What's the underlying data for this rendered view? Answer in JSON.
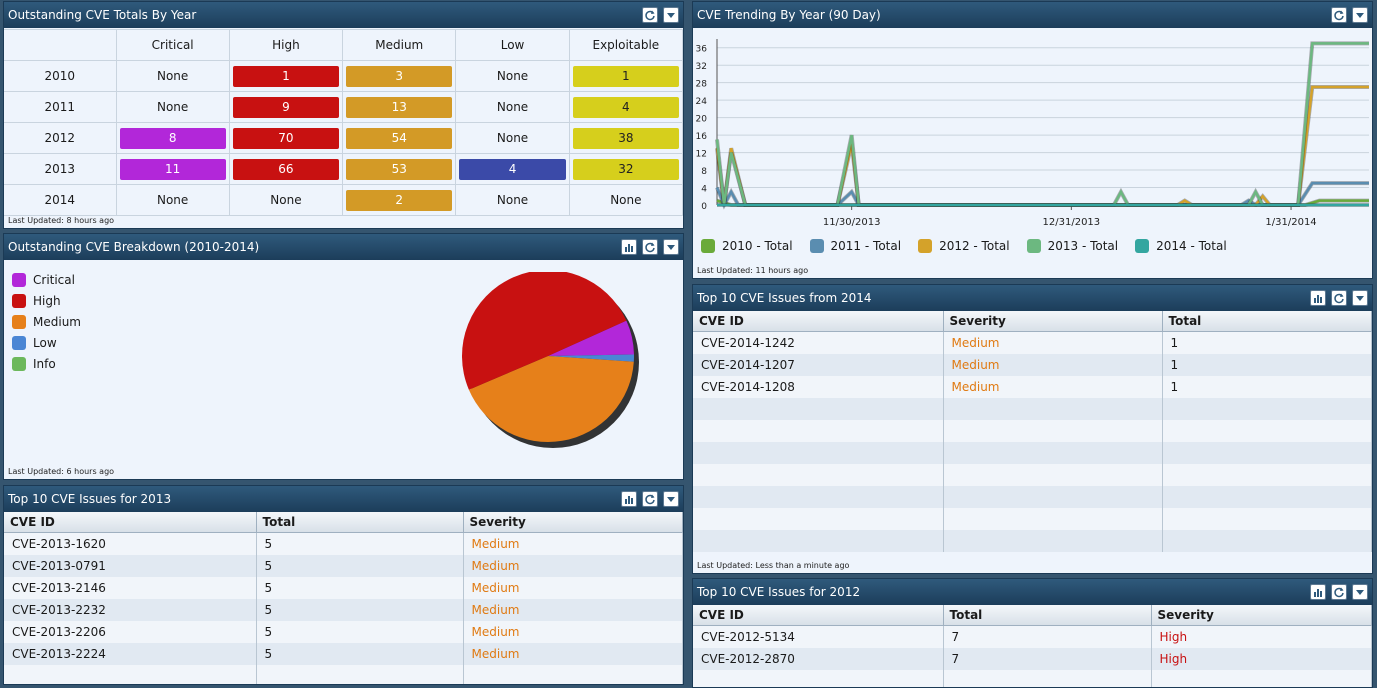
{
  "totals": {
    "title": "Outstanding CVE Totals By Year",
    "updated": "Last Updated: 8 hours ago",
    "headers": [
      "Critical",
      "High",
      "Medium",
      "Low",
      "Exploitable"
    ],
    "rows": [
      {
        "year": "2010",
        "critical": "None",
        "high": "1",
        "medium": "3",
        "low": "None",
        "exploitable": "1"
      },
      {
        "year": "2011",
        "critical": "None",
        "high": "9",
        "medium": "13",
        "low": "None",
        "exploitable": "4"
      },
      {
        "year": "2012",
        "critical": "8",
        "high": "70",
        "medium": "54",
        "low": "None",
        "exploitable": "38"
      },
      {
        "year": "2013",
        "critical": "11",
        "high": "66",
        "medium": "53",
        "low": "4",
        "exploitable": "32"
      },
      {
        "year": "2014",
        "critical": "None",
        "high": "None",
        "medium": "2",
        "low": "None",
        "exploitable": "None"
      }
    ]
  },
  "breakdown": {
    "title": "Outstanding CVE Breakdown (2010-2014)",
    "updated": "Last Updated: 6 hours ago",
    "legend": [
      {
        "label": "Critical",
        "color": "#b227d9"
      },
      {
        "label": "High",
        "color": "#c81111"
      },
      {
        "label": "Medium",
        "color": "#e6801a"
      },
      {
        "label": "Low",
        "color": "#4a86d4"
      },
      {
        "label": "Info",
        "color": "#6cb85c"
      }
    ]
  },
  "top2013": {
    "title": "Top 10 CVE Issues for 2013",
    "cols": [
      "CVE ID",
      "Total",
      "Severity"
    ],
    "rows": [
      {
        "id": "CVE-2013-1620",
        "total": "5",
        "severity": "Medium"
      },
      {
        "id": "CVE-2013-0791",
        "total": "5",
        "severity": "Medium"
      },
      {
        "id": "CVE-2013-2146",
        "total": "5",
        "severity": "Medium"
      },
      {
        "id": "CVE-2013-2232",
        "total": "5",
        "severity": "Medium"
      },
      {
        "id": "CVE-2013-2206",
        "total": "5",
        "severity": "Medium"
      },
      {
        "id": "CVE-2013-2224",
        "total": "5",
        "severity": "Medium"
      }
    ]
  },
  "trend": {
    "title": "CVE Trending By Year (90 Day)",
    "updated": "Last Updated: 11 hours ago",
    "colors": [
      "#6aaa3a",
      "#5a8db0",
      "#d4a22a",
      "#6cb880",
      "#33a6a0"
    ]
  },
  "top2014": {
    "title": "Top 10 CVE Issues from 2014",
    "updated": "Last Updated: Less than a minute ago",
    "cols": [
      "CVE ID",
      "Severity",
      "Total"
    ],
    "rows": [
      {
        "id": "CVE-2014-1242",
        "severity": "Medium",
        "total": "1"
      },
      {
        "id": "CVE-2014-1207",
        "severity": "Medium",
        "total": "1"
      },
      {
        "id": "CVE-2014-1208",
        "severity": "Medium",
        "total": "1"
      }
    ]
  },
  "top2012": {
    "title": "Top 10 CVE Issues for 2012",
    "cols": [
      "CVE ID",
      "Total",
      "Severity"
    ],
    "rows": [
      {
        "id": "CVE-2012-5134",
        "total": "7",
        "severity": "High"
      },
      {
        "id": "CVE-2012-2870",
        "total": "7",
        "severity": "High"
      }
    ]
  },
  "chart_data": [
    {
      "type": "pie",
      "title": "Outstanding CVE Breakdown (2010-2014)",
      "labels": [
        "Critical",
        "High",
        "Medium",
        "Low",
        "Info"
      ],
      "values": [
        19,
        146,
        125,
        4,
        0
      ],
      "colors": [
        "#b227d9",
        "#c81111",
        "#e6801a",
        "#4a86d4",
        "#6cb85c"
      ],
      "legend": "left"
    },
    {
      "type": "line",
      "title": "CVE Trending By Year (90 Day)",
      "x_ticks": [
        "11/30/2013",
        "12/31/2013",
        "1/31/2014"
      ],
      "y_ticks": [
        0,
        4,
        8,
        12,
        16,
        20,
        24,
        28,
        32,
        36
      ],
      "ylim": [
        0,
        38
      ],
      "xlim": [
        "2013-11-11",
        "2014-02-11"
      ],
      "grid": "horizontal",
      "legend": "bottom",
      "series": [
        {
          "name": "2010 - Total",
          "points": [
            [
              "2013-11-11",
              1
            ],
            [
              "2013-11-30",
              0
            ],
            [
              "2014-01-31",
              0
            ],
            [
              "2014-02-11",
              1
            ]
          ]
        },
        {
          "name": "2011 - Total",
          "points": [
            [
              "2013-11-11",
              4
            ],
            [
              "2013-11-30",
              3
            ],
            [
              "2014-01-25",
              1
            ],
            [
              "2014-02-11",
              5
            ]
          ]
        },
        {
          "name": "2012 - Total",
          "points": [
            [
              "2013-11-11",
              13
            ],
            [
              "2013-11-30",
              14
            ],
            [
              "2014-01-20",
              1
            ],
            [
              "2014-02-11",
              27
            ]
          ]
        },
        {
          "name": "2013 - Total",
          "points": [
            [
              "2013-11-11",
              15
            ],
            [
              "2013-11-30",
              16
            ],
            [
              "2014-01-25",
              3
            ],
            [
              "2014-02-11",
              37
            ]
          ]
        },
        {
          "name": "2014 - Total",
          "points": [
            [
              "2013-11-11",
              0
            ],
            [
              "2013-11-30",
              0
            ],
            [
              "2014-01-31",
              0
            ],
            [
              "2014-02-11",
              0
            ]
          ]
        }
      ]
    }
  ]
}
